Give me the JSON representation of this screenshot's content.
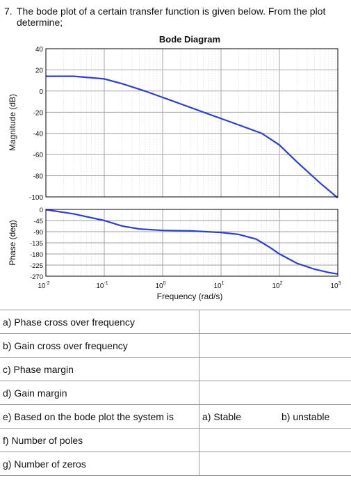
{
  "question": {
    "number": "7.",
    "text": "The bode plot of a certain transfer function is given below. From the plot determine;"
  },
  "chart_data": {
    "type": "line",
    "title": "Bode Diagram",
    "xlabel": "Frequency  (rad/s)",
    "xscale": "log",
    "xlim": [
      0.01,
      1000
    ],
    "x_ticks": [
      {
        "base": "10",
        "exp": "-2"
      },
      {
        "base": "10",
        "exp": "-1"
      },
      {
        "base": "10",
        "exp": "0"
      },
      {
        "base": "10",
        "exp": "1"
      },
      {
        "base": "10",
        "exp": "2"
      },
      {
        "base": "10",
        "exp": "3"
      }
    ],
    "grid": true,
    "line_color": "#2b3fd6",
    "magnitude": {
      "ylabel": "Magnitude (dB)",
      "ylim": [
        -100,
        40
      ],
      "yticks": [
        "40",
        "20",
        "0",
        "-20",
        "-40",
        "-60",
        "-80",
        "-100"
      ],
      "x": [
        0.01,
        0.03,
        0.1,
        0.2,
        0.5,
        1,
        2,
        5,
        10,
        20,
        50,
        100,
        200,
        500,
        1000
      ],
      "y": [
        14,
        14,
        11.5,
        7,
        0,
        -6,
        -12,
        -20,
        -26,
        -32,
        -40,
        -51,
        -67,
        -87,
        -101
      ]
    },
    "phase": {
      "ylabel": "Phase (deg)",
      "ylim": [
        -270,
        0
      ],
      "yticks": [
        "0",
        "-45",
        "-90",
        "-135",
        "-180",
        "-225",
        "-270"
      ],
      "x": [
        0.01,
        0.03,
        0.1,
        0.2,
        0.4,
        1,
        3,
        10,
        20,
        40,
        70,
        100,
        200,
        400,
        700,
        1000
      ],
      "y": [
        -1,
        -18,
        -45,
        -67,
        -79,
        -85,
        -87,
        -93,
        -101,
        -120,
        -155,
        -180,
        -218,
        -242,
        -255,
        -261
      ]
    }
  },
  "answers": {
    "rows": [
      {
        "label": "a) Phase cross over frequency",
        "col2": "",
        "col3": ""
      },
      {
        "label": "b) Gain cross over frequency",
        "col2": "",
        "col3": ""
      },
      {
        "label": "c) Phase margin",
        "col2": "",
        "col3": ""
      },
      {
        "label": "d) Gain margin",
        "col2": "",
        "col3": ""
      },
      {
        "label": "e) Based on the bode plot the system is",
        "col2": "a) Stable",
        "col3": "b) unstable"
      },
      {
        "label": "f)  Number of poles",
        "col2": "",
        "col3": ""
      },
      {
        "label": "g) Number of zeros",
        "col2": "",
        "col3": ""
      }
    ]
  }
}
